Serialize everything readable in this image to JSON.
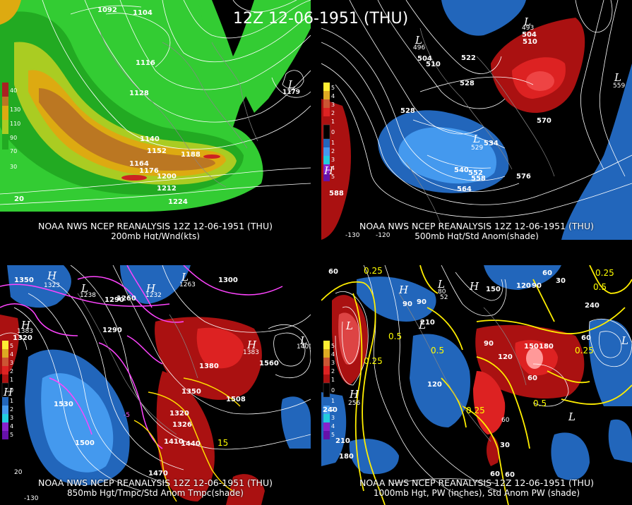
{
  "title": "12Z 12-06-1951 (THU)",
  "panels": [
    {
      "id": "p1",
      "credit": "NOAA NWS NCEP REANALYSIS 12Z 12-06-1951 (THU)",
      "field": "200mb Hgt/Wnd(kts)",
      "colorbar": [
        "40",
        "130",
        "110",
        "90",
        "70",
        "50",
        "30"
      ],
      "contour_labels": [
        "1092",
        "1104",
        "1116",
        "1128",
        "1140",
        "1152",
        "1164",
        "1176",
        "1188",
        "1200",
        "1212",
        "1224",
        "1179"
      ],
      "lon_labels": [
        "20"
      ],
      "centers": [
        "L"
      ]
    },
    {
      "id": "p2",
      "credit": "NOAA NWS NCEP REANALYSIS 12Z 12-06-1951 (THU)",
      "field": "500mb Hgt/Std Anom(shade)",
      "colorbar": [
        "5",
        "4",
        "3",
        "2",
        "1",
        "0",
        "1",
        "2",
        "3",
        "4",
        "5"
      ],
      "contour_labels": [
        "528",
        "504",
        "510",
        "522",
        "528",
        "570",
        "534",
        "540",
        "552",
        "558",
        "564",
        "576",
        "588",
        "493",
        "496",
        "504",
        "510",
        "529",
        "559"
      ],
      "lon_labels": [
        "-130",
        "-120"
      ],
      "centers": [
        "L",
        "L",
        "L",
        "L",
        "H"
      ]
    },
    {
      "id": "p3",
      "credit": "NOAA NWS NCEP REANALYSIS 12Z 12-06-1951 (THU)",
      "field": "850mb Hgt/Tmpc/Std Anom Tmpc(shade)",
      "colorbar": [
        "5",
        "4",
        "3",
        "2",
        "1",
        "0",
        "1",
        "2",
        "3",
        "4",
        "5"
      ],
      "contour_labels": [
        "1350",
        "1323",
        "1290",
        "1260",
        "1238",
        "1290",
        "1320",
        "1300",
        "1380",
        "1383",
        "1560",
        "1350",
        "1320",
        "1530",
        "1500",
        "1410",
        "1440",
        "1470",
        "1508",
        "1401",
        "1263",
        "1232",
        "1326"
      ],
      "temp_labels": [
        "15",
        "-5"
      ],
      "lon_labels": [
        "-130",
        "20"
      ],
      "centers": [
        "H",
        "L",
        "H",
        "L",
        "H",
        "L",
        "H",
        "H"
      ]
    },
    {
      "id": "p4",
      "credit": "NOAA NWS NCEP REANALYSIS 12Z 12-06-1951 (THU)",
      "field": "1000mb Hgt, PW (inches), Std Anom PW (shade)",
      "colorbar": [
        "5",
        "4",
        "3",
        "2",
        "1",
        "0",
        "1",
        "2",
        "3",
        "4",
        "5"
      ],
      "contour_labels": [
        "60",
        "90",
        "150",
        "120",
        "90",
        "60",
        "30",
        "240",
        "210",
        "90",
        "120",
        "150",
        "180",
        "60",
        "240",
        "210",
        "180",
        "30",
        "60",
        "90",
        "120",
        "80",
        "52",
        "256",
        "60"
      ],
      "pw_labels": [
        "0.25",
        "0.5",
        "0.25",
        "0.5",
        "0.25",
        "0.5",
        "0.25",
        "0.25",
        "0.5"
      ],
      "lon_labels": [
        "60"
      ],
      "centers": [
        "L",
        "H",
        "L",
        "H",
        "L",
        "L",
        "H",
        "L"
      ]
    }
  ]
}
